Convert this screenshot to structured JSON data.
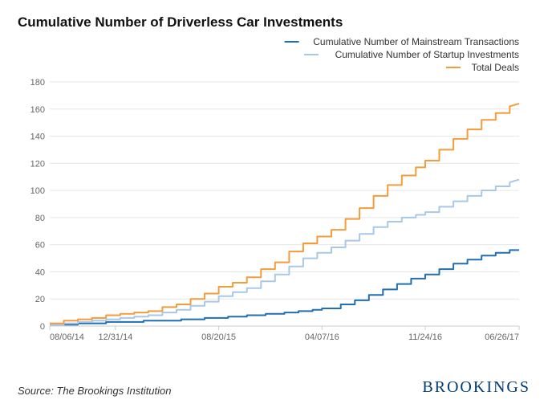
{
  "title": "Cumulative Number of Driverless Car Investments",
  "source": "Source: The Brookings Institution",
  "brand": "BROOKINGS",
  "chart": {
    "type": "line-step",
    "background_color": "#ffffff",
    "plot_background": "#ffffff",
    "grid_color": "#e6e6e6",
    "axis_color": "#cccccc",
    "axis_label_color": "#666666",
    "axis_fontsize": 11,
    "legend_fontsize": 12,
    "legend_position": "top-right",
    "ylim": [
      0,
      180
    ],
    "ytick_step": 20,
    "yticks": [
      0,
      20,
      40,
      60,
      80,
      100,
      120,
      140,
      160,
      180
    ],
    "x_domain": [
      0,
      100
    ],
    "xticks": [
      {
        "pos": 0,
        "label": "08/06/14"
      },
      {
        "pos": 14,
        "label": "12/31/14"
      },
      {
        "pos": 36,
        "label": "08/20/15"
      },
      {
        "pos": 58,
        "label": "04/07/16"
      },
      {
        "pos": 80,
        "label": "11/24/16"
      },
      {
        "pos": 100,
        "label": "06/26/17"
      }
    ],
    "series": [
      {
        "id": "mainstream",
        "label": "Cumulative Number of Mainstream Transactions",
        "color": "#1f6fb2",
        "line_width": 2,
        "points": [
          [
            0,
            1
          ],
          [
            6,
            1
          ],
          [
            6,
            2
          ],
          [
            12,
            2
          ],
          [
            12,
            3
          ],
          [
            20,
            3
          ],
          [
            20,
            4
          ],
          [
            28,
            4
          ],
          [
            28,
            5
          ],
          [
            33,
            5
          ],
          [
            33,
            6
          ],
          [
            38,
            6
          ],
          [
            38,
            7
          ],
          [
            42,
            7
          ],
          [
            42,
            8
          ],
          [
            46,
            8
          ],
          [
            46,
            9
          ],
          [
            50,
            9
          ],
          [
            50,
            10
          ],
          [
            53,
            10
          ],
          [
            53,
            11
          ],
          [
            56,
            11
          ],
          [
            56,
            12
          ],
          [
            58,
            12
          ],
          [
            58,
            13
          ],
          [
            62,
            13
          ],
          [
            62,
            16
          ],
          [
            65,
            16
          ],
          [
            65,
            19
          ],
          [
            68,
            19
          ],
          [
            68,
            23
          ],
          [
            71,
            23
          ],
          [
            71,
            27
          ],
          [
            74,
            27
          ],
          [
            74,
            31
          ],
          [
            77,
            31
          ],
          [
            77,
            35
          ],
          [
            80,
            35
          ],
          [
            80,
            38
          ],
          [
            83,
            38
          ],
          [
            83,
            42
          ],
          [
            86,
            42
          ],
          [
            86,
            46
          ],
          [
            89,
            46
          ],
          [
            89,
            49
          ],
          [
            92,
            49
          ],
          [
            92,
            52
          ],
          [
            95,
            52
          ],
          [
            95,
            54
          ],
          [
            98,
            54
          ],
          [
            98,
            56
          ],
          [
            100,
            56
          ]
        ]
      },
      {
        "id": "startup",
        "label": "Cumulative Number of Startup Investments",
        "color": "#a9c7e6",
        "line_width": 2,
        "points": [
          [
            0,
            1
          ],
          [
            3,
            1
          ],
          [
            3,
            2
          ],
          [
            6,
            2
          ],
          [
            6,
            3
          ],
          [
            9,
            3
          ],
          [
            9,
            4
          ],
          [
            12,
            4
          ],
          [
            12,
            5
          ],
          [
            15,
            5
          ],
          [
            15,
            6
          ],
          [
            18,
            6
          ],
          [
            18,
            7
          ],
          [
            21,
            7
          ],
          [
            21,
            8
          ],
          [
            24,
            8
          ],
          [
            24,
            10
          ],
          [
            27,
            10
          ],
          [
            27,
            12
          ],
          [
            30,
            12
          ],
          [
            30,
            15
          ],
          [
            33,
            15
          ],
          [
            33,
            18
          ],
          [
            36,
            18
          ],
          [
            36,
            22
          ],
          [
            39,
            22
          ],
          [
            39,
            25
          ],
          [
            42,
            25
          ],
          [
            42,
            28
          ],
          [
            45,
            28
          ],
          [
            45,
            33
          ],
          [
            48,
            33
          ],
          [
            48,
            38
          ],
          [
            51,
            38
          ],
          [
            51,
            44
          ],
          [
            54,
            44
          ],
          [
            54,
            50
          ],
          [
            57,
            50
          ],
          [
            57,
            54
          ],
          [
            60,
            54
          ],
          [
            60,
            58
          ],
          [
            63,
            58
          ],
          [
            63,
            63
          ],
          [
            66,
            63
          ],
          [
            66,
            68
          ],
          [
            69,
            68
          ],
          [
            69,
            73
          ],
          [
            72,
            73
          ],
          [
            72,
            77
          ],
          [
            75,
            77
          ],
          [
            75,
            80
          ],
          [
            78,
            80
          ],
          [
            78,
            82
          ],
          [
            80,
            82
          ],
          [
            80,
            84
          ],
          [
            83,
            84
          ],
          [
            83,
            88
          ],
          [
            86,
            88
          ],
          [
            86,
            92
          ],
          [
            89,
            92
          ],
          [
            89,
            96
          ],
          [
            92,
            96
          ],
          [
            92,
            100
          ],
          [
            95,
            100
          ],
          [
            95,
            103
          ],
          [
            98,
            103
          ],
          [
            98,
            106
          ],
          [
            100,
            108
          ]
        ]
      },
      {
        "id": "total",
        "label": "Total Deals",
        "color": "#f39c3b",
        "line_width": 2,
        "points": [
          [
            0,
            2
          ],
          [
            3,
            2
          ],
          [
            3,
            4
          ],
          [
            6,
            4
          ],
          [
            6,
            5
          ],
          [
            9,
            5
          ],
          [
            9,
            6
          ],
          [
            12,
            6
          ],
          [
            12,
            8
          ],
          [
            15,
            8
          ],
          [
            15,
            9
          ],
          [
            18,
            9
          ],
          [
            18,
            10
          ],
          [
            21,
            10
          ],
          [
            21,
            11
          ],
          [
            24,
            11
          ],
          [
            24,
            14
          ],
          [
            27,
            14
          ],
          [
            27,
            16
          ],
          [
            30,
            16
          ],
          [
            30,
            20
          ],
          [
            33,
            20
          ],
          [
            33,
            24
          ],
          [
            36,
            24
          ],
          [
            36,
            29
          ],
          [
            39,
            29
          ],
          [
            39,
            32
          ],
          [
            42,
            32
          ],
          [
            42,
            36
          ],
          [
            45,
            36
          ],
          [
            45,
            42
          ],
          [
            48,
            42
          ],
          [
            48,
            47
          ],
          [
            51,
            47
          ],
          [
            51,
            55
          ],
          [
            54,
            55
          ],
          [
            54,
            61
          ],
          [
            57,
            61
          ],
          [
            57,
            66
          ],
          [
            60,
            66
          ],
          [
            60,
            71
          ],
          [
            63,
            71
          ],
          [
            63,
            79
          ],
          [
            66,
            79
          ],
          [
            66,
            87
          ],
          [
            69,
            87
          ],
          [
            69,
            96
          ],
          [
            72,
            96
          ],
          [
            72,
            104
          ],
          [
            75,
            104
          ],
          [
            75,
            111
          ],
          [
            78,
            111
          ],
          [
            78,
            117
          ],
          [
            80,
            117
          ],
          [
            80,
            122
          ],
          [
            83,
            122
          ],
          [
            83,
            130
          ],
          [
            86,
            130
          ],
          [
            86,
            138
          ],
          [
            89,
            138
          ],
          [
            89,
            145
          ],
          [
            92,
            145
          ],
          [
            92,
            152
          ],
          [
            95,
            152
          ],
          [
            95,
            157
          ],
          [
            98,
            157
          ],
          [
            98,
            162
          ],
          [
            100,
            164
          ]
        ]
      }
    ]
  }
}
